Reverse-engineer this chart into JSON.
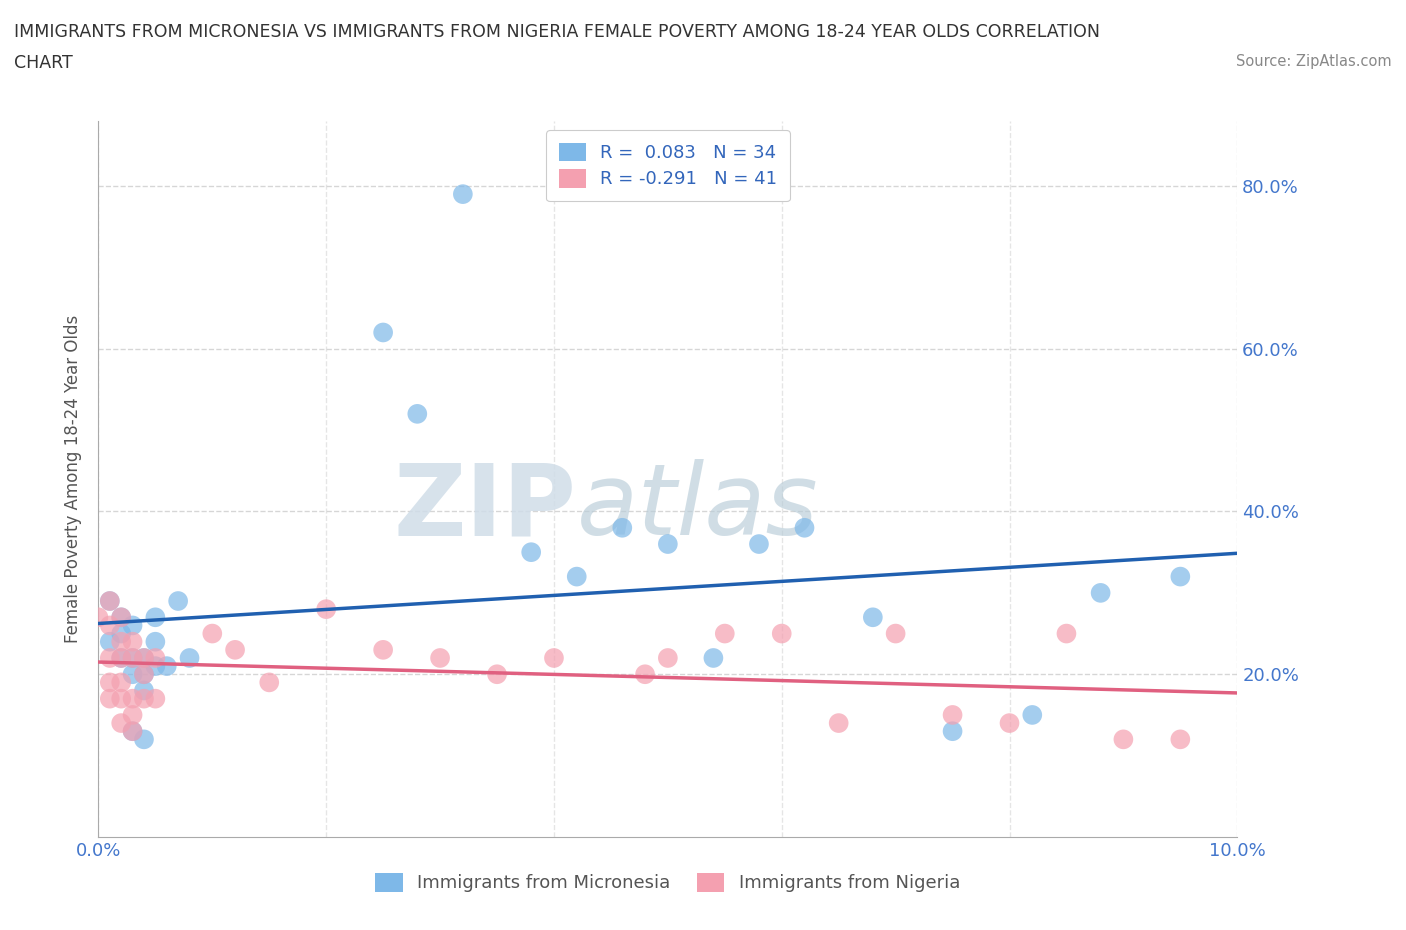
{
  "title_line1": "IMMIGRANTS FROM MICRONESIA VS IMMIGRANTS FROM NIGERIA FEMALE POVERTY AMONG 18-24 YEAR OLDS CORRELATION",
  "title_line2": "CHART",
  "source": "Source: ZipAtlas.com",
  "ylabel": "Female Poverty Among 18-24 Year Olds",
  "xlabel": "",
  "xlim": [
    0.0,
    0.1
  ],
  "ylim": [
    0.0,
    0.88
  ],
  "xticks": [
    0.0,
    0.02,
    0.04,
    0.06,
    0.08,
    0.1
  ],
  "xticklabels": [
    "0.0%",
    "",
    "",
    "",
    "",
    "10.0%"
  ],
  "yticks": [
    0.2,
    0.4,
    0.6,
    0.8
  ],
  "yticklabels": [
    "20.0%",
    "40.0%",
    "60.0%",
    "80.0%"
  ],
  "micronesia_color": "#7EB8E8",
  "nigeria_color": "#F4A0B0",
  "trendline_micronesia_color": "#2060B0",
  "trendline_nigeria_color": "#E06080",
  "legend_micronesia_r": "R =  0.083",
  "legend_micronesia_n": "N = 34",
  "legend_nigeria_r": "R = -0.291",
  "legend_nigeria_n": "N = 41",
  "legend_label_micronesia": "Immigrants from Micronesia",
  "legend_label_nigeria": "Immigrants from Nigeria",
  "watermark_zip": "ZIP",
  "watermark_atlas": "atlas",
  "background_color": "#ffffff",
  "grid_color": "#cccccc",
  "micronesia_x": [
    0.001,
    0.001,
    0.002,
    0.002,
    0.002,
    0.003,
    0.003,
    0.003,
    0.003,
    0.004,
    0.004,
    0.004,
    0.004,
    0.005,
    0.005,
    0.005,
    0.006,
    0.007,
    0.008,
    0.025,
    0.028,
    0.032,
    0.038,
    0.042,
    0.046,
    0.05,
    0.054,
    0.058,
    0.062,
    0.068,
    0.075,
    0.082,
    0.088,
    0.095
  ],
  "micronesia_y": [
    0.29,
    0.24,
    0.27,
    0.25,
    0.22,
    0.26,
    0.22,
    0.2,
    0.13,
    0.22,
    0.2,
    0.18,
    0.12,
    0.24,
    0.21,
    0.27,
    0.21,
    0.29,
    0.22,
    0.62,
    0.52,
    0.79,
    0.35,
    0.32,
    0.38,
    0.36,
    0.22,
    0.36,
    0.38,
    0.27,
    0.13,
    0.15,
    0.3,
    0.32
  ],
  "nigeria_x": [
    0.0,
    0.001,
    0.001,
    0.001,
    0.001,
    0.001,
    0.002,
    0.002,
    0.002,
    0.002,
    0.002,
    0.002,
    0.003,
    0.003,
    0.003,
    0.003,
    0.003,
    0.004,
    0.004,
    0.004,
    0.005,
    0.005,
    0.01,
    0.012,
    0.015,
    0.02,
    0.025,
    0.03,
    0.035,
    0.04,
    0.048,
    0.05,
    0.055,
    0.06,
    0.065,
    0.07,
    0.075,
    0.08,
    0.085,
    0.09,
    0.095
  ],
  "nigeria_y": [
    0.27,
    0.29,
    0.26,
    0.22,
    0.19,
    0.17,
    0.27,
    0.24,
    0.22,
    0.19,
    0.17,
    0.14,
    0.24,
    0.22,
    0.17,
    0.15,
    0.13,
    0.22,
    0.2,
    0.17,
    0.22,
    0.17,
    0.25,
    0.23,
    0.19,
    0.28,
    0.23,
    0.22,
    0.2,
    0.22,
    0.2,
    0.22,
    0.25,
    0.25,
    0.14,
    0.25,
    0.15,
    0.14,
    0.25,
    0.12,
    0.12
  ]
}
